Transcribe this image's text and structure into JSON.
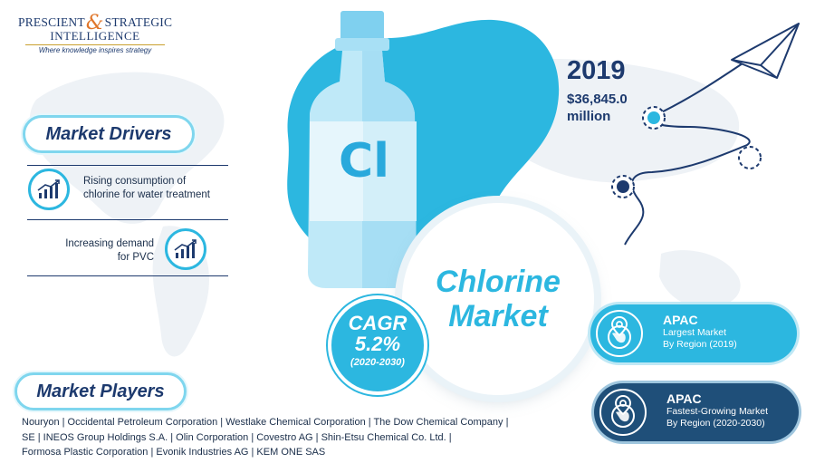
{
  "logo": {
    "line1a": "PRESCIENT",
    "amp": "&",
    "line1b": "STRATEGIC",
    "line2": "INTELLIGENCE",
    "tagline": "Where knowledge inspires strategy"
  },
  "product_symbol": "Cl",
  "title": {
    "line1": "Chlorine",
    "line2": "Market"
  },
  "cagr": {
    "label": "CAGR",
    "value": "5.2%",
    "period": "(2020-2030)"
  },
  "market_size": {
    "year": "2019",
    "value_line1": "$36,845.0",
    "value_line2": "million"
  },
  "market_drivers": {
    "heading": "Market Drivers",
    "items": [
      {
        "line1": "Rising consumption of",
        "line2": "chlorine for water treatment",
        "icon": "growth-chart-icon"
      },
      {
        "line1": "Increasing demand",
        "line2": "for PVC",
        "icon": "growth-chart-icon"
      }
    ]
  },
  "regions": [
    {
      "title": "APAC",
      "line1": "Largest Market",
      "line2": "By Region (2019)",
      "icon": "location-globe-icon"
    },
    {
      "title": "APAC",
      "line1": "Fastest-Growing Market",
      "line2": "By Region (2020-2030)",
      "icon": "location-globe-icon"
    }
  ],
  "market_players": {
    "heading": "Market Players",
    "lines": [
      "Nouryon | Occidental Petroleum Corporation | Westlake Chemical Corporation | The Dow Chemical Company |",
      "SE | INEOS Group Holdings S.A. | Olin Corporation | Covestro AG | Shin-Etsu Chemical Co. Ltd. |",
      "Formosa Plastic Corporation | Evonik Industries AG | KEM ONE SAS"
    ]
  },
  "colors": {
    "accent_blue": "#2cb7e0",
    "navy": "#1d3a6e",
    "dark_card": "#1f4f79",
    "logo_orange": "#e0762a"
  }
}
